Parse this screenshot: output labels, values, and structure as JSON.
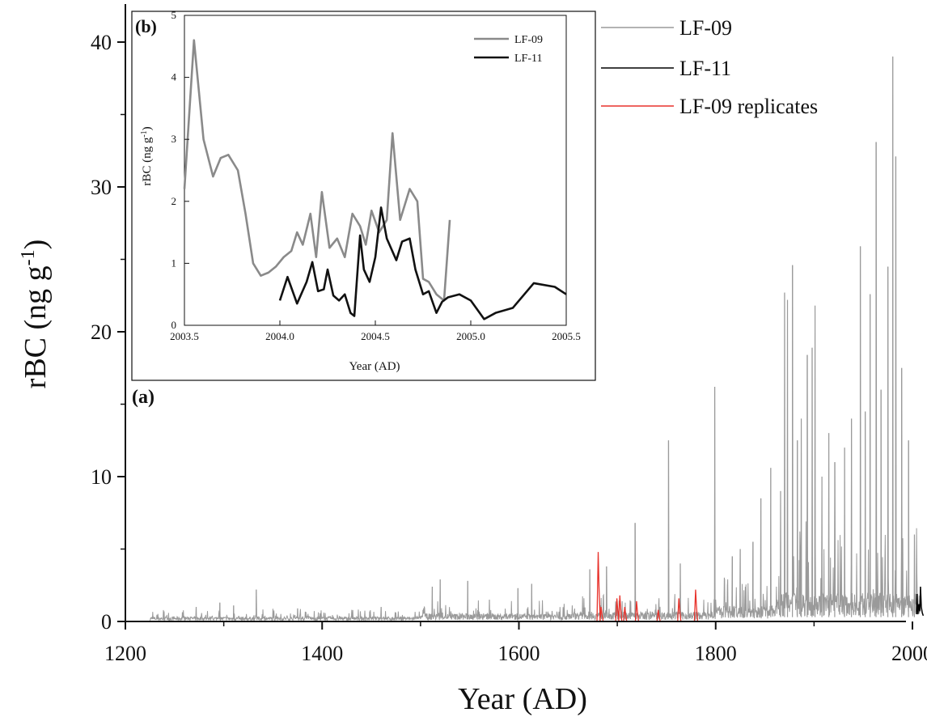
{
  "chart_data": [
    {
      "panel": "(a)",
      "type": "line",
      "xlabel": "Year (AD)",
      "ylabel_main": "rBC (ng g",
      "ylabel_sup": "-1",
      "ylabel_close": ")",
      "xlim": [
        1200,
        2020
      ],
      "ylim": [
        0,
        42
      ],
      "xticks": [
        1200,
        1400,
        1600,
        1800,
        2000
      ],
      "yticks": [
        0,
        10,
        20,
        30,
        40
      ],
      "legend_position": "top-right",
      "series": [
        {
          "name": "LF-09",
          "color": "#9a9a9a",
          "segments": [
            {
              "from": 1225,
              "to": 1500,
              "base": 0.3,
              "spread": 0.6
            },
            {
              "from": 1500,
              "to": 1650,
              "base": 0.5,
              "spread": 1.0
            },
            {
              "from": 1650,
              "to": 1800,
              "base": 0.6,
              "spread": 1.4
            },
            {
              "from": 1800,
              "to": 1860,
              "base": 1.0,
              "spread": 2.5
            },
            {
              "from": 1860,
              "to": 2008,
              "base": 1.8,
              "spread": 5.0
            }
          ],
          "peaks": [
            {
              "x": 1272,
              "y": 1.0
            },
            {
              "x": 1296,
              "y": 1.3
            },
            {
              "x": 1310,
              "y": 1.1
            },
            {
              "x": 1333,
              "y": 2.2
            },
            {
              "x": 1375,
              "y": 0.9
            },
            {
              "x": 1460,
              "y": 1.0
            },
            {
              "x": 1512,
              "y": 2.4
            },
            {
              "x": 1520,
              "y": 2.9
            },
            {
              "x": 1548,
              "y": 2.8
            },
            {
              "x": 1570,
              "y": 1.5
            },
            {
              "x": 1599,
              "y": 2.3
            },
            {
              "x": 1613,
              "y": 2.6
            },
            {
              "x": 1672,
              "y": 3.6
            },
            {
              "x": 1689,
              "y": 3.8
            },
            {
              "x": 1718,
              "y": 6.8
            },
            {
              "x": 1752,
              "y": 12.5
            },
            {
              "x": 1764,
              "y": 4.0
            },
            {
              "x": 1799,
              "y": 16.2
            },
            {
              "x": 1817,
              "y": 4.5
            },
            {
              "x": 1825,
              "y": 5.0
            },
            {
              "x": 1838,
              "y": 5.5
            },
            {
              "x": 1846,
              "y": 8.5
            },
            {
              "x": 1856,
              "y": 10.6
            },
            {
              "x": 1866,
              "y": 9.0
            },
            {
              "x": 1870,
              "y": 22.7
            },
            {
              "x": 1873,
              "y": 22.2
            },
            {
              "x": 1878,
              "y": 24.6
            },
            {
              "x": 1883,
              "y": 12.5
            },
            {
              "x": 1887,
              "y": 14.0
            },
            {
              "x": 1893,
              "y": 18.4
            },
            {
              "x": 1898,
              "y": 18.9
            },
            {
              "x": 1901,
              "y": 21.8
            },
            {
              "x": 1908,
              "y": 10.0
            },
            {
              "x": 1915,
              "y": 13.0
            },
            {
              "x": 1921,
              "y": 11.0
            },
            {
              "x": 1931,
              "y": 12.0
            },
            {
              "x": 1938,
              "y": 14.0
            },
            {
              "x": 1947,
              "y": 25.9
            },
            {
              "x": 1952,
              "y": 14.5
            },
            {
              "x": 1957,
              "y": 22.6
            },
            {
              "x": 1963,
              "y": 33.1
            },
            {
              "x": 1968,
              "y": 16.0
            },
            {
              "x": 1975,
              "y": 24.5
            },
            {
              "x": 1980,
              "y": 39.0
            },
            {
              "x": 1983,
              "y": 32.1
            },
            {
              "x": 1989,
              "y": 17.5
            },
            {
              "x": 1996,
              "y": 12.5
            },
            {
              "x": 2002,
              "y": 6.0
            }
          ]
        },
        {
          "name": "LF-11",
          "color": "#000000",
          "points": [
            [
              2004.0,
              0.5
            ],
            [
              2004.6,
              1.9
            ],
            [
              2005.5,
              0.5
            ],
            [
              2006.5,
              1.2
            ],
            [
              2007.5,
              0.7
            ],
            [
              2008.2,
              2.4
            ],
            [
              2009.0,
              1.0
            ],
            [
              2010.0,
              0.6
            ],
            [
              2011.0,
              0.4
            ]
          ]
        },
        {
          "name": "LF-09 replicates",
          "color": "#e8322b",
          "peaks": [
            {
              "x": 1681,
              "y": 4.8
            },
            {
              "x": 1684,
              "y": 1.0
            },
            {
              "x": 1700,
              "y": 1.6
            },
            {
              "x": 1703,
              "y": 1.8
            },
            {
              "x": 1708,
              "y": 1.0
            },
            {
              "x": 1720,
              "y": 1.4
            },
            {
              "x": 1742,
              "y": 0.8
            },
            {
              "x": 1763,
              "y": 1.6
            },
            {
              "x": 1780,
              "y": 2.2
            }
          ]
        }
      ]
    },
    {
      "panel": "(b)",
      "type": "line",
      "xlabel": "Year (AD)",
      "ylabel_main": "rBC (ng g",
      "ylabel_sup": "-1",
      "ylabel_close": ")",
      "xlim": [
        2003.5,
        2005.5
      ],
      "ylim": [
        0,
        5
      ],
      "xticks": [
        2003.5,
        2004.0,
        2004.5,
        2005.0,
        2005.5
      ],
      "xtick_labels": [
        "2003.5",
        "2004.0",
        "2004.5",
        "2005.0",
        "2005.5"
      ],
      "yticks": [
        0,
        1,
        2,
        3,
        4,
        5
      ],
      "legend_position": "top-right",
      "series": [
        {
          "name": "LF-09",
          "color": "#8a8a8a",
          "x": [
            2003.5,
            2003.55,
            2003.6,
            2003.65,
            2003.69,
            2003.73,
            2003.78,
            2003.82,
            2003.86,
            2003.9,
            2003.94,
            2003.98,
            2004.02,
            2004.06,
            2004.09,
            2004.12,
            2004.16,
            2004.19,
            2004.22,
            2004.26,
            2004.3,
            2004.34,
            2004.38,
            2004.42,
            2004.45,
            2004.48,
            2004.52,
            2004.56,
            2004.59,
            2004.63,
            2004.68,
            2004.72,
            2004.75,
            2004.78,
            2004.82,
            2004.86,
            2004.89
          ],
          "y": [
            2.2,
            4.6,
            3.0,
            2.4,
            2.7,
            2.75,
            2.5,
            1.8,
            1.0,
            0.8,
            0.85,
            0.95,
            1.1,
            1.2,
            1.5,
            1.3,
            1.8,
            1.1,
            2.15,
            1.25,
            1.4,
            1.1,
            1.8,
            1.6,
            1.3,
            1.85,
            1.5,
            1.7,
            3.1,
            1.7,
            2.2,
            2.0,
            0.75,
            0.7,
            0.5,
            0.4,
            1.7
          ]
        },
        {
          "name": "LF-11",
          "color": "#111111",
          "x": [
            2004.0,
            2004.04,
            2004.09,
            2004.14,
            2004.17,
            2004.2,
            2004.23,
            2004.25,
            2004.28,
            2004.31,
            2004.34,
            2004.37,
            2004.39,
            2004.42,
            2004.44,
            2004.47,
            2004.5,
            2004.53,
            2004.56,
            2004.61,
            2004.64,
            2004.68,
            2004.71,
            2004.75,
            2004.78,
            2004.82,
            2004.85,
            2004.88,
            2004.94,
            2005.0,
            2005.07,
            2005.13,
            2005.22,
            2005.33,
            2005.44,
            2005.5
          ],
          "y": [
            0.4,
            0.78,
            0.35,
            0.7,
            1.02,
            0.55,
            0.58,
            0.9,
            0.48,
            0.4,
            0.5,
            0.2,
            0.15,
            1.45,
            0.9,
            0.7,
            1.1,
            1.9,
            1.4,
            1.05,
            1.35,
            1.4,
            0.9,
            0.5,
            0.55,
            0.2,
            0.38,
            0.45,
            0.5,
            0.4,
            0.1,
            0.2,
            0.28,
            0.68,
            0.62,
            0.5
          ]
        }
      ]
    }
  ]
}
